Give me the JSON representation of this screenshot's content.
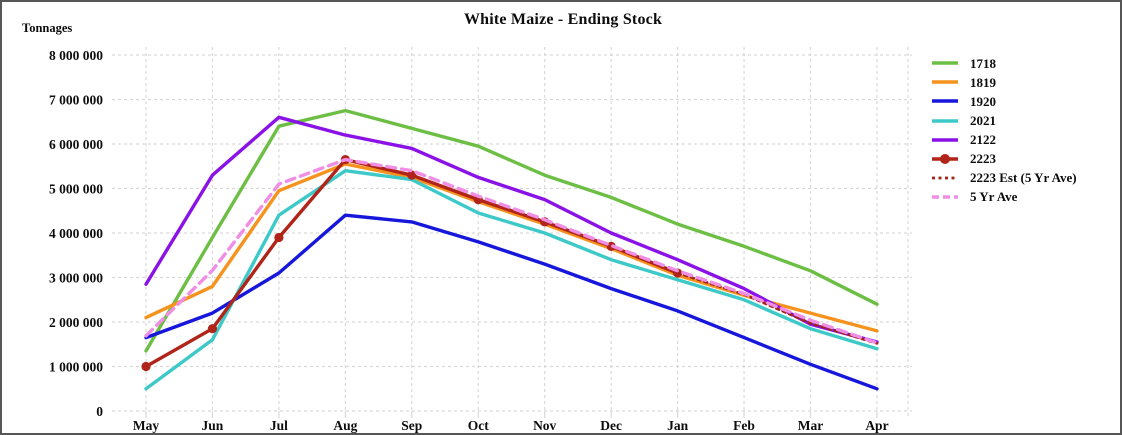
{
  "title": "White Maize - Ending Stock",
  "y_axis_title": "Tonnages",
  "colors": {
    "grid": "#d9d9d9",
    "text": "#0d0d0d",
    "frame_border": "#565656",
    "s1718": "#6cbf44",
    "s1819": "#f6921e",
    "s1920": "#1717dc",
    "s2021": "#3ec9c9",
    "s2122": "#8a12e6",
    "s2223": "#b02419",
    "s2223_est": "#a32318",
    "s5yr": "#ef8ee4"
  },
  "chart_data": {
    "type": "line",
    "title": "White Maize - Ending Stock",
    "ylabel": "Tonnages",
    "xlabel": "",
    "categories": [
      "May",
      "Jun",
      "Jul",
      "Aug",
      "Sep",
      "Oct",
      "Nov",
      "Dec",
      "Jan",
      "Feb",
      "Mar",
      "Apr"
    ],
    "ylim": [
      0,
      8000000
    ],
    "ytick_step": 1000000,
    "ytick_labels": [
      "0",
      "1 000 000",
      "2 000 000",
      "3 000 000",
      "4 000 000",
      "5 000 000",
      "6 000 000",
      "7 000 000",
      "8 000 000"
    ],
    "grid": "dashed-both",
    "legend_position": "right",
    "series": [
      {
        "name": "1718",
        "color": "#6cbf44",
        "style": "solid",
        "marker": "none",
        "values": [
          1350000,
          3900000,
          6400000,
          6750000,
          6350000,
          5950000,
          5300000,
          4800000,
          4200000,
          3700000,
          3150000,
          2400000
        ]
      },
      {
        "name": "1819",
        "color": "#f6921e",
        "style": "solid",
        "marker": "none",
        "values": [
          2100000,
          2800000,
          4950000,
          5550000,
          5250000,
          4700000,
          4200000,
          3650000,
          3050000,
          2600000,
          2200000,
          1800000
        ]
      },
      {
        "name": "1920",
        "color": "#1717dc",
        "style": "solid",
        "marker": "none",
        "values": [
          1650000,
          2200000,
          3100000,
          4400000,
          4250000,
          3800000,
          3300000,
          2750000,
          2250000,
          1650000,
          1050000,
          500000
        ]
      },
      {
        "name": "2021",
        "color": "#3ec9c9",
        "style": "solid",
        "marker": "none",
        "values": [
          500000,
          1600000,
          4400000,
          5400000,
          5200000,
          4450000,
          4000000,
          3400000,
          2950000,
          2500000,
          1850000,
          1400000
        ]
      },
      {
        "name": "2122",
        "color": "#8a12e6",
        "style": "solid",
        "marker": "none",
        "values": [
          2850000,
          5300000,
          6600000,
          6200000,
          5900000,
          5250000,
          4750000,
          4000000,
          3400000,
          2750000,
          1950000,
          1550000
        ]
      },
      {
        "name": "2223",
        "color": "#b02419",
        "style": "solid",
        "marker": "circle",
        "values": [
          1000000,
          1850000,
          3900000,
          5650000,
          5300000,
          4750000,
          4250000,
          3700000,
          3100000,
          null,
          null,
          null
        ]
      },
      {
        "name": "2223 Est (5 Yr Ave)",
        "color": "#a32318",
        "style": "dotted",
        "marker": "none",
        "values": [
          null,
          null,
          null,
          null,
          null,
          null,
          null,
          null,
          3100000,
          2620000,
          1970000,
          1520000
        ]
      },
      {
        "name": "5 Yr Ave",
        "color": "#ef8ee4",
        "style": "dashed",
        "marker": "none",
        "values": [
          1690000,
          3160000,
          5100000,
          5650000,
          5400000,
          4830000,
          4300000,
          3720000,
          3150000,
          2640000,
          2040000,
          1530000
        ]
      }
    ]
  }
}
